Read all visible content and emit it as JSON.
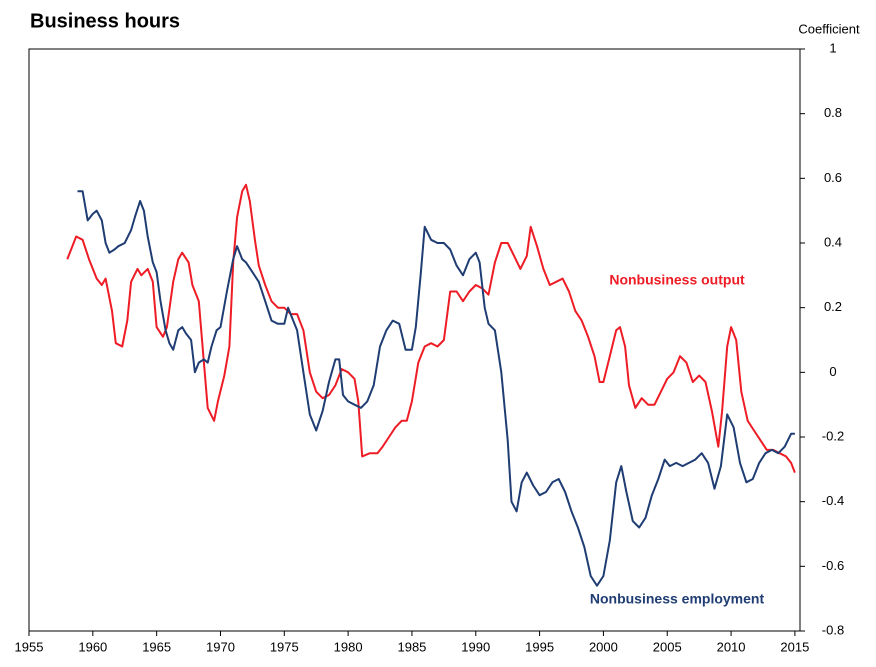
{
  "chart_data": {
    "type": "line",
    "title": "Business hours",
    "y_label": "Coefficient",
    "xlim": [
      1955,
      2015.4
    ],
    "xticks": [
      1955,
      1960,
      1965,
      1970,
      1975,
      1980,
      1985,
      1990,
      1995,
      2000,
      2005,
      2010,
      2015
    ],
    "ylim": [
      -0.8,
      1
    ],
    "yticks": [
      -0.8,
      -0.6,
      -0.4,
      -0.2,
      0,
      0.2,
      0.4,
      0.6,
      0.8,
      1
    ],
    "grid": false,
    "series": [
      {
        "name": "Nonbusiness output",
        "color": "#ee1c25",
        "x": [
          1958.0,
          1958.7,
          1959.2,
          1959.7,
          1960.3,
          1960.7,
          1961.0,
          1961.5,
          1961.8,
          1962.3,
          1962.7,
          1963.0,
          1963.5,
          1963.8,
          1964.3,
          1964.7,
          1965.0,
          1965.5,
          1965.8,
          1966.3,
          1966.7,
          1967.0,
          1967.5,
          1967.8,
          1968.3,
          1968.7,
          1969.0,
          1969.5,
          1969.8,
          1970.3,
          1970.7,
          1971.0,
          1971.3,
          1971.7,
          1972.0,
          1972.3,
          1972.7,
          1973.0,
          1973.5,
          1974.0,
          1974.5,
          1975.0,
          1975.5,
          1976.0,
          1976.5,
          1977.0,
          1977.5,
          1978.0,
          1978.5,
          1979.0,
          1979.5,
          1980.0,
          1980.5,
          1980.8,
          1981.1,
          1981.7,
          1982.3,
          1982.7,
          1983.2,
          1983.7,
          1984.2,
          1984.6,
          1985.0,
          1985.5,
          1986.0,
          1986.5,
          1987.0,
          1987.5,
          1988.0,
          1988.5,
          1989.0,
          1989.5,
          1990.0,
          1990.5,
          1991.0,
          1991.5,
          1992.0,
          1992.5,
          1993.0,
          1993.5,
          1994.0,
          1994.3,
          1994.8,
          1995.3,
          1995.8,
          1996.3,
          1996.8,
          1997.3,
          1997.8,
          1998.3,
          1998.8,
          1999.3,
          1999.7,
          2000.0,
          2000.5,
          2001.0,
          2001.3,
          2001.7,
          2002.0,
          2002.5,
          2003.0,
          2003.5,
          2004.0,
          2004.5,
          2005.0,
          2005.5,
          2006.0,
          2006.5,
          2007.0,
          2007.5,
          2008.0,
          2008.5,
          2009.0,
          2009.3,
          2009.7,
          2010.0,
          2010.4,
          2010.8,
          2011.3,
          2011.8,
          2012.3,
          2012.8,
          2013.3,
          2013.8,
          2014.3,
          2014.7,
          2015.0
        ],
        "values": [
          0.35,
          0.42,
          0.41,
          0.35,
          0.29,
          0.27,
          0.29,
          0.19,
          0.09,
          0.08,
          0.16,
          0.28,
          0.32,
          0.3,
          0.32,
          0.28,
          0.14,
          0.11,
          0.14,
          0.28,
          0.35,
          0.37,
          0.34,
          0.27,
          0.22,
          0.03,
          -0.11,
          -0.15,
          -0.09,
          -0.01,
          0.08,
          0.34,
          0.48,
          0.56,
          0.58,
          0.53,
          0.41,
          0.33,
          0.27,
          0.22,
          0.2,
          0.2,
          0.18,
          0.18,
          0.13,
          0.0,
          -0.06,
          -0.08,
          -0.07,
          -0.04,
          0.01,
          0.0,
          -0.02,
          -0.09,
          -0.26,
          -0.25,
          -0.25,
          -0.23,
          -0.2,
          -0.17,
          -0.15,
          -0.15,
          -0.09,
          0.03,
          0.08,
          0.09,
          0.08,
          0.1,
          0.25,
          0.25,
          0.22,
          0.25,
          0.27,
          0.26,
          0.24,
          0.34,
          0.4,
          0.4,
          0.36,
          0.32,
          0.36,
          0.45,
          0.39,
          0.32,
          0.27,
          0.28,
          0.29,
          0.25,
          0.19,
          0.16,
          0.11,
          0.05,
          -0.03,
          -0.03,
          0.05,
          0.13,
          0.14,
          0.08,
          -0.04,
          -0.11,
          -0.08,
          -0.1,
          -0.1,
          -0.06,
          -0.02,
          0.0,
          0.05,
          0.03,
          -0.03,
          -0.01,
          -0.03,
          -0.12,
          -0.23,
          -0.12,
          0.08,
          0.14,
          0.1,
          -0.06,
          -0.15,
          -0.18,
          -0.21,
          -0.24,
          -0.24,
          -0.25,
          -0.26,
          -0.28,
          -0.31
        ]
      },
      {
        "name": "Nonbusiness employment",
        "color": "#1f3d73",
        "x": [
          1958.8,
          1959.2,
          1959.6,
          1960.0,
          1960.3,
          1960.7,
          1961.0,
          1961.3,
          1961.7,
          1962.0,
          1962.5,
          1963.0,
          1963.3,
          1963.7,
          1964.0,
          1964.3,
          1964.7,
          1965.0,
          1965.3,
          1965.7,
          1966.0,
          1966.3,
          1966.7,
          1967.0,
          1967.3,
          1967.7,
          1968.0,
          1968.3,
          1968.7,
          1969.0,
          1969.3,
          1969.7,
          1970.0,
          1970.5,
          1971.0,
          1971.3,
          1971.7,
          1972.0,
          1972.5,
          1973.0,
          1973.5,
          1974.0,
          1974.5,
          1975.0,
          1975.3,
          1975.7,
          1976.0,
          1976.5,
          1977.0,
          1977.5,
          1978.0,
          1978.5,
          1979.0,
          1979.3,
          1979.6,
          1980.0,
          1980.5,
          1981.0,
          1981.5,
          1982.0,
          1982.5,
          1983.0,
          1983.5,
          1984.0,
          1984.5,
          1985.0,
          1985.3,
          1985.7,
          1986.0,
          1986.5,
          1987.0,
          1987.5,
          1988.0,
          1988.5,
          1989.0,
          1989.5,
          1990.0,
          1990.3,
          1990.7,
          1991.0,
          1991.5,
          1992.0,
          1992.5,
          1992.8,
          1993.2,
          1993.6,
          1994.0,
          1994.5,
          1995.0,
          1995.5,
          1996.0,
          1996.5,
          1997.0,
          1997.5,
          1998.0,
          1998.5,
          1999.0,
          1999.5,
          2000.0,
          2000.5,
          2001.0,
          2001.4,
          2001.8,
          2002.3,
          2002.8,
          2003.3,
          2003.8,
          2004.3,
          2004.8,
          2005.2,
          2005.7,
          2006.2,
          2006.7,
          2007.2,
          2007.7,
          2008.2,
          2008.7,
          2009.2,
          2009.7,
          2010.2,
          2010.7,
          2011.2,
          2011.7,
          2012.2,
          2012.7,
          2013.2,
          2013.7,
          2014.2,
          2014.7,
          2015.0
        ],
        "values": [
          0.56,
          0.56,
          0.47,
          0.49,
          0.5,
          0.47,
          0.4,
          0.37,
          0.38,
          0.39,
          0.4,
          0.44,
          0.48,
          0.53,
          0.5,
          0.42,
          0.34,
          0.31,
          0.22,
          0.13,
          0.09,
          0.07,
          0.13,
          0.14,
          0.12,
          0.1,
          0.0,
          0.03,
          0.04,
          0.03,
          0.08,
          0.13,
          0.14,
          0.25,
          0.35,
          0.39,
          0.35,
          0.34,
          0.31,
          0.28,
          0.22,
          0.16,
          0.15,
          0.15,
          0.2,
          0.16,
          0.13,
          0.0,
          -0.13,
          -0.18,
          -0.12,
          -0.03,
          0.04,
          0.04,
          -0.07,
          -0.09,
          -0.1,
          -0.11,
          -0.09,
          -0.04,
          0.08,
          0.13,
          0.16,
          0.15,
          0.07,
          0.07,
          0.14,
          0.31,
          0.45,
          0.41,
          0.4,
          0.4,
          0.38,
          0.33,
          0.3,
          0.35,
          0.37,
          0.34,
          0.2,
          0.15,
          0.13,
          0.0,
          -0.21,
          -0.4,
          -0.43,
          -0.34,
          -0.31,
          -0.35,
          -0.38,
          -0.37,
          -0.34,
          -0.33,
          -0.37,
          -0.43,
          -0.48,
          -0.54,
          -0.63,
          -0.66,
          -0.63,
          -0.52,
          -0.34,
          -0.29,
          -0.37,
          -0.46,
          -0.48,
          -0.45,
          -0.38,
          -0.33,
          -0.27,
          -0.29,
          -0.28,
          -0.29,
          -0.28,
          -0.27,
          -0.25,
          -0.28,
          -0.36,
          -0.29,
          -0.13,
          -0.17,
          -0.28,
          -0.34,
          -0.33,
          -0.28,
          -0.25,
          -0.24,
          -0.25,
          -0.23,
          -0.19,
          -0.19
        ]
      }
    ]
  }
}
